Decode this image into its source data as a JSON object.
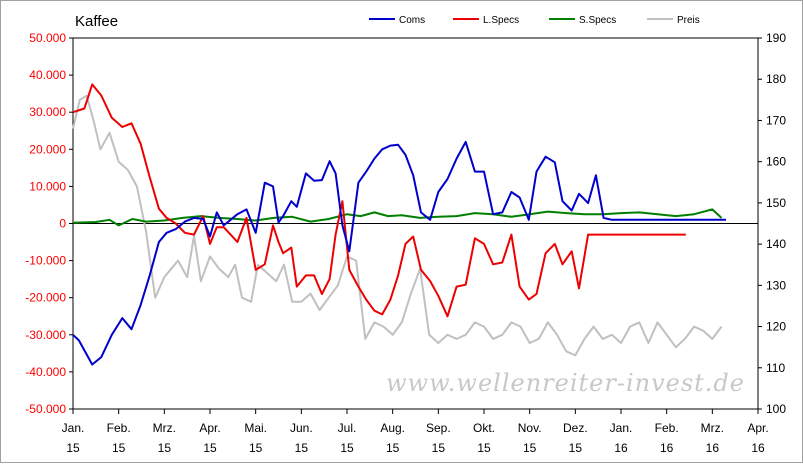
{
  "chart_data": {
    "type": "line",
    "title": "Kaffee",
    "watermark": "www.wellenreiter-invest.de",
    "x_labels": [
      {
        "month": "Jan.",
        "year": "15"
      },
      {
        "month": "Feb.",
        "year": "15"
      },
      {
        "month": "Mrz.",
        "year": "15"
      },
      {
        "month": "Apr.",
        "year": "15"
      },
      {
        "month": "Mai.",
        "year": "15"
      },
      {
        "month": "Jun.",
        "year": "15"
      },
      {
        "month": "Jul.",
        "year": "15"
      },
      {
        "month": "Aug.",
        "year": "15"
      },
      {
        "month": "Sep.",
        "year": "15"
      },
      {
        "month": "Okt.",
        "year": "15"
      },
      {
        "month": "Nov.",
        "year": "15"
      },
      {
        "month": "Dez.",
        "year": "15"
      },
      {
        "month": "Jan.",
        "year": "16"
      },
      {
        "month": "Feb.",
        "year": "16"
      },
      {
        "month": "Mrz.",
        "year": "16"
      },
      {
        "month": "Apr.",
        "year": "16"
      }
    ],
    "y_left": {
      "ylim": [
        -50000,
        50000
      ],
      "ticks": [
        "-50.000",
        "-40.000",
        "-30.000",
        "-20.000",
        "-10.000",
        "0",
        "10.000",
        "20.000",
        "30.000",
        "40.000",
        "50.000"
      ],
      "tick_values": [
        -50000,
        -40000,
        -30000,
        -20000,
        -10000,
        0,
        10000,
        20000,
        30000,
        40000,
        50000
      ],
      "color": "#ff0000"
    },
    "y_right": {
      "ylim": [
        100,
        190
      ],
      "ticks": [
        "100",
        "110",
        "120",
        "130",
        "140",
        "150",
        "160",
        "170",
        "180",
        "190"
      ],
      "tick_values": [
        100,
        110,
        120,
        130,
        140,
        150,
        160,
        170,
        180,
        190
      ],
      "color": "#000000"
    },
    "grid": false,
    "legend_position": "top-right",
    "series": [
      {
        "name": "Coms",
        "axis": "left",
        "color": "#0000cc",
        "x": [
          0,
          0.13,
          0.42,
          0.62,
          0.85,
          1.08,
          1.28,
          1.48,
          1.68,
          1.88,
          2.05,
          2.25,
          2.45,
          2.65,
          2.85,
          3.0,
          3.15,
          3.3,
          3.45,
          3.6,
          3.8,
          4.0,
          4.2,
          4.38,
          4.5,
          4.6,
          4.78,
          4.9,
          5.1,
          5.28,
          5.45,
          5.62,
          5.75,
          5.9,
          6.05,
          6.25,
          6.42,
          6.6,
          6.77,
          6.95,
          7.12,
          7.28,
          7.45,
          7.62,
          7.82,
          8.0,
          8.2,
          8.4,
          8.6,
          8.8,
          9.0,
          9.2,
          9.4,
          9.6,
          9.78,
          9.98,
          10.15,
          10.35,
          10.55,
          10.72,
          10.92,
          11.08,
          11.28,
          11.45,
          11.62,
          11.8,
          12.0,
          12.22,
          12.38,
          12.55,
          12.72,
          12.9,
          13.05,
          13.22,
          13.42,
          13.6,
          13.8,
          13.98,
          14.15,
          14.3
        ],
        "values": [
          -30000,
          -31500,
          -38000,
          -36000,
          -30000,
          -25500,
          -28500,
          -22000,
          -14000,
          -5000,
          -2500,
          -1500,
          500,
          1500,
          1200,
          -3500,
          3000,
          -500,
          1000,
          2500,
          3800,
          -2500,
          11000,
          10000,
          300,
          2000,
          6000,
          4500,
          13500,
          11500,
          11700,
          16800,
          13500,
          -500,
          -7500,
          11000,
          14000,
          17500,
          20000,
          21000,
          21200,
          18500,
          13000,
          3000,
          1000,
          8500,
          12000,
          17500,
          22000,
          14000,
          14000,
          2500,
          3000,
          8500,
          7000,
          1000,
          14000,
          18000,
          16500,
          6000,
          3500,
          8000,
          5500,
          13000,
          1500,
          1000,
          1000,
          1000,
          1000,
          1000,
          1000,
          1000,
          1000,
          1000,
          1000,
          1000,
          1000,
          1000,
          1000,
          1000
        ]
      },
      {
        "name": "L.Specs",
        "axis": "left",
        "color": "#ee0000",
        "x": [
          0,
          0.25,
          0.42,
          0.62,
          0.85,
          1.08,
          1.28,
          1.48,
          1.68,
          1.88,
          2.05,
          2.25,
          2.45,
          2.65,
          2.85,
          3.0,
          3.15,
          3.3,
          3.45,
          3.6,
          3.8,
          4.0,
          4.2,
          4.38,
          4.5,
          4.6,
          4.78,
          4.9,
          5.1,
          5.28,
          5.45,
          5.62,
          5.75,
          5.9,
          6.05,
          6.25,
          6.42,
          6.6,
          6.77,
          6.95,
          7.12,
          7.28,
          7.45,
          7.62,
          7.82,
          8.0,
          8.2,
          8.4,
          8.6,
          8.8,
          9.0,
          9.2,
          9.4,
          9.6,
          9.78,
          9.98,
          10.15,
          10.35,
          10.55,
          10.72,
          10.92,
          11.08,
          11.28,
          11.45,
          11.62,
          11.8,
          12.0,
          12.22,
          12.38,
          12.55,
          12.72,
          12.9,
          13.05,
          13.22,
          13.42
        ],
        "values": [
          30000,
          31000,
          37500,
          34500,
          28500,
          26000,
          27000,
          21500,
          12500,
          4000,
          1500,
          0,
          -2500,
          -3000,
          2000,
          -5500,
          -1000,
          -1000,
          -3000,
          -5000,
          1500,
          -12500,
          -11000,
          -500,
          -5000,
          -8000,
          -6500,
          -17000,
          -14000,
          -14000,
          -19000,
          -15000,
          -3000,
          6000,
          -12500,
          -17000,
          -20500,
          -23500,
          -24500,
          -20500,
          -14000,
          -5500,
          -3500,
          -12500,
          -15500,
          -19500,
          -25000,
          -17000,
          -16500,
          -4000,
          -5500,
          -11000,
          -10500,
          -3000,
          -17000,
          -20500,
          -19000,
          -8000,
          -5500,
          -11000,
          -7500,
          -17500,
          -3000,
          -3000,
          -3000,
          -3000,
          -3000,
          -3000,
          -3000,
          -3000,
          -3000,
          -3000,
          -3000,
          -3000,
          -3000
        ]
      },
      {
        "name": "S.Specs",
        "axis": "left",
        "color": "#008000",
        "x": [
          0,
          0.5,
          0.8,
          1.0,
          1.3,
          1.6,
          2.0,
          2.4,
          2.8,
          3.2,
          3.6,
          4.0,
          4.4,
          4.8,
          5.2,
          5.6,
          6.0,
          6.3,
          6.6,
          6.9,
          7.2,
          7.6,
          8.0,
          8.4,
          8.8,
          9.2,
          9.6,
          10.0,
          10.4,
          10.8,
          11.2,
          11.6,
          12.0,
          12.4,
          12.8,
          13.2,
          13.6,
          14.0,
          14.2
        ],
        "values": [
          200,
          400,
          1000,
          -500,
          1200,
          500,
          800,
          1500,
          2000,
          1500,
          1200,
          800,
          1500,
          1800,
          500,
          1200,
          2500,
          2000,
          3000,
          2000,
          2200,
          1500,
          1800,
          2000,
          2800,
          2500,
          1800,
          2500,
          3200,
          2800,
          2500,
          2500,
          2800,
          3000,
          2500,
          2000,
          2500,
          3800,
          1500
        ]
      },
      {
        "name": "Preis",
        "axis": "right",
        "color": "#c0c0c0",
        "x": [
          0,
          0.15,
          0.3,
          0.45,
          0.6,
          0.8,
          1.0,
          1.2,
          1.4,
          1.6,
          1.8,
          2.0,
          2.15,
          2.3,
          2.5,
          2.65,
          2.8,
          3.0,
          3.2,
          3.4,
          3.55,
          3.7,
          3.9,
          4.05,
          4.25,
          4.45,
          4.62,
          4.8,
          5.0,
          5.2,
          5.4,
          5.6,
          5.8,
          6.0,
          6.2,
          6.4,
          6.6,
          6.8,
          7.0,
          7.2,
          7.4,
          7.6,
          7.8,
          8.0,
          8.2,
          8.4,
          8.6,
          8.8,
          9.0,
          9.2,
          9.4,
          9.6,
          9.8,
          10.0,
          10.2,
          10.4,
          10.6,
          10.8,
          11.0,
          11.2,
          11.4,
          11.6,
          11.8,
          12.0,
          12.2,
          12.4,
          12.6,
          12.8,
          13.0,
          13.2,
          13.4,
          13.6,
          13.8,
          14.0,
          14.2
        ],
        "values": [
          168,
          175,
          176,
          170,
          163,
          167,
          160,
          158,
          154,
          143,
          127,
          132,
          134,
          136,
          132,
          142,
          131,
          137,
          134,
          132,
          135,
          127,
          126,
          135,
          133,
          131,
          135,
          126,
          126,
          128,
          124,
          127,
          130,
          137,
          136,
          117,
          121,
          120,
          118,
          121,
          128,
          134,
          118,
          116,
          118,
          117,
          118,
          121,
          120,
          117,
          118,
          121,
          120,
          116,
          117,
          121,
          118,
          114,
          113,
          117,
          120,
          117,
          118,
          116,
          120,
          121,
          116,
          121,
          118,
          115,
          117,
          120,
          119,
          117,
          120
        ]
      }
    ]
  }
}
